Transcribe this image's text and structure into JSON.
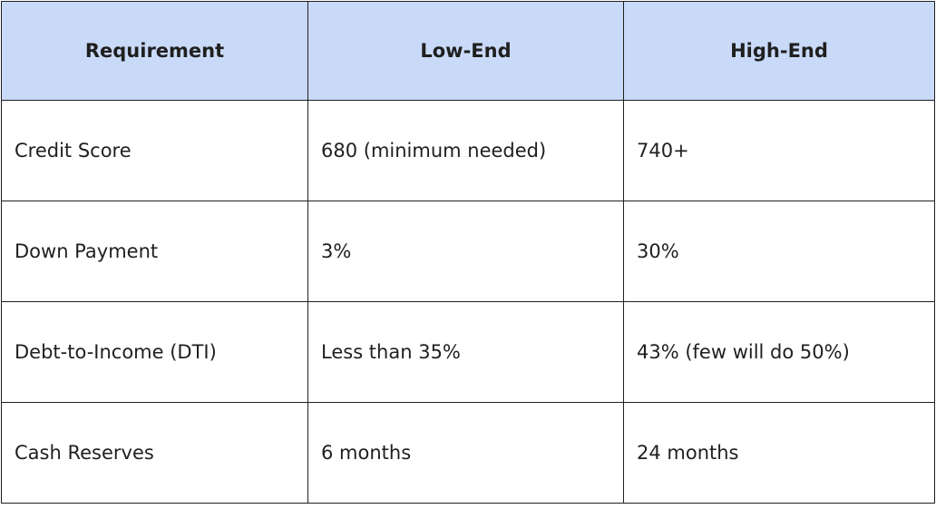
{
  "table": {
    "header": [
      "Requirement",
      "Low-End",
      "High-End"
    ],
    "rows": [
      [
        "Credit Score",
        "680 (minimum needed)",
        "740+"
      ],
      [
        "Down Payment",
        "3%",
        "30%"
      ],
      [
        "Debt-to-Income (DTI)",
        "Less than 35%",
        "43% (few will do 50%)"
      ],
      [
        "Cash Reserves",
        "6 months",
        "24 months"
      ]
    ]
  }
}
